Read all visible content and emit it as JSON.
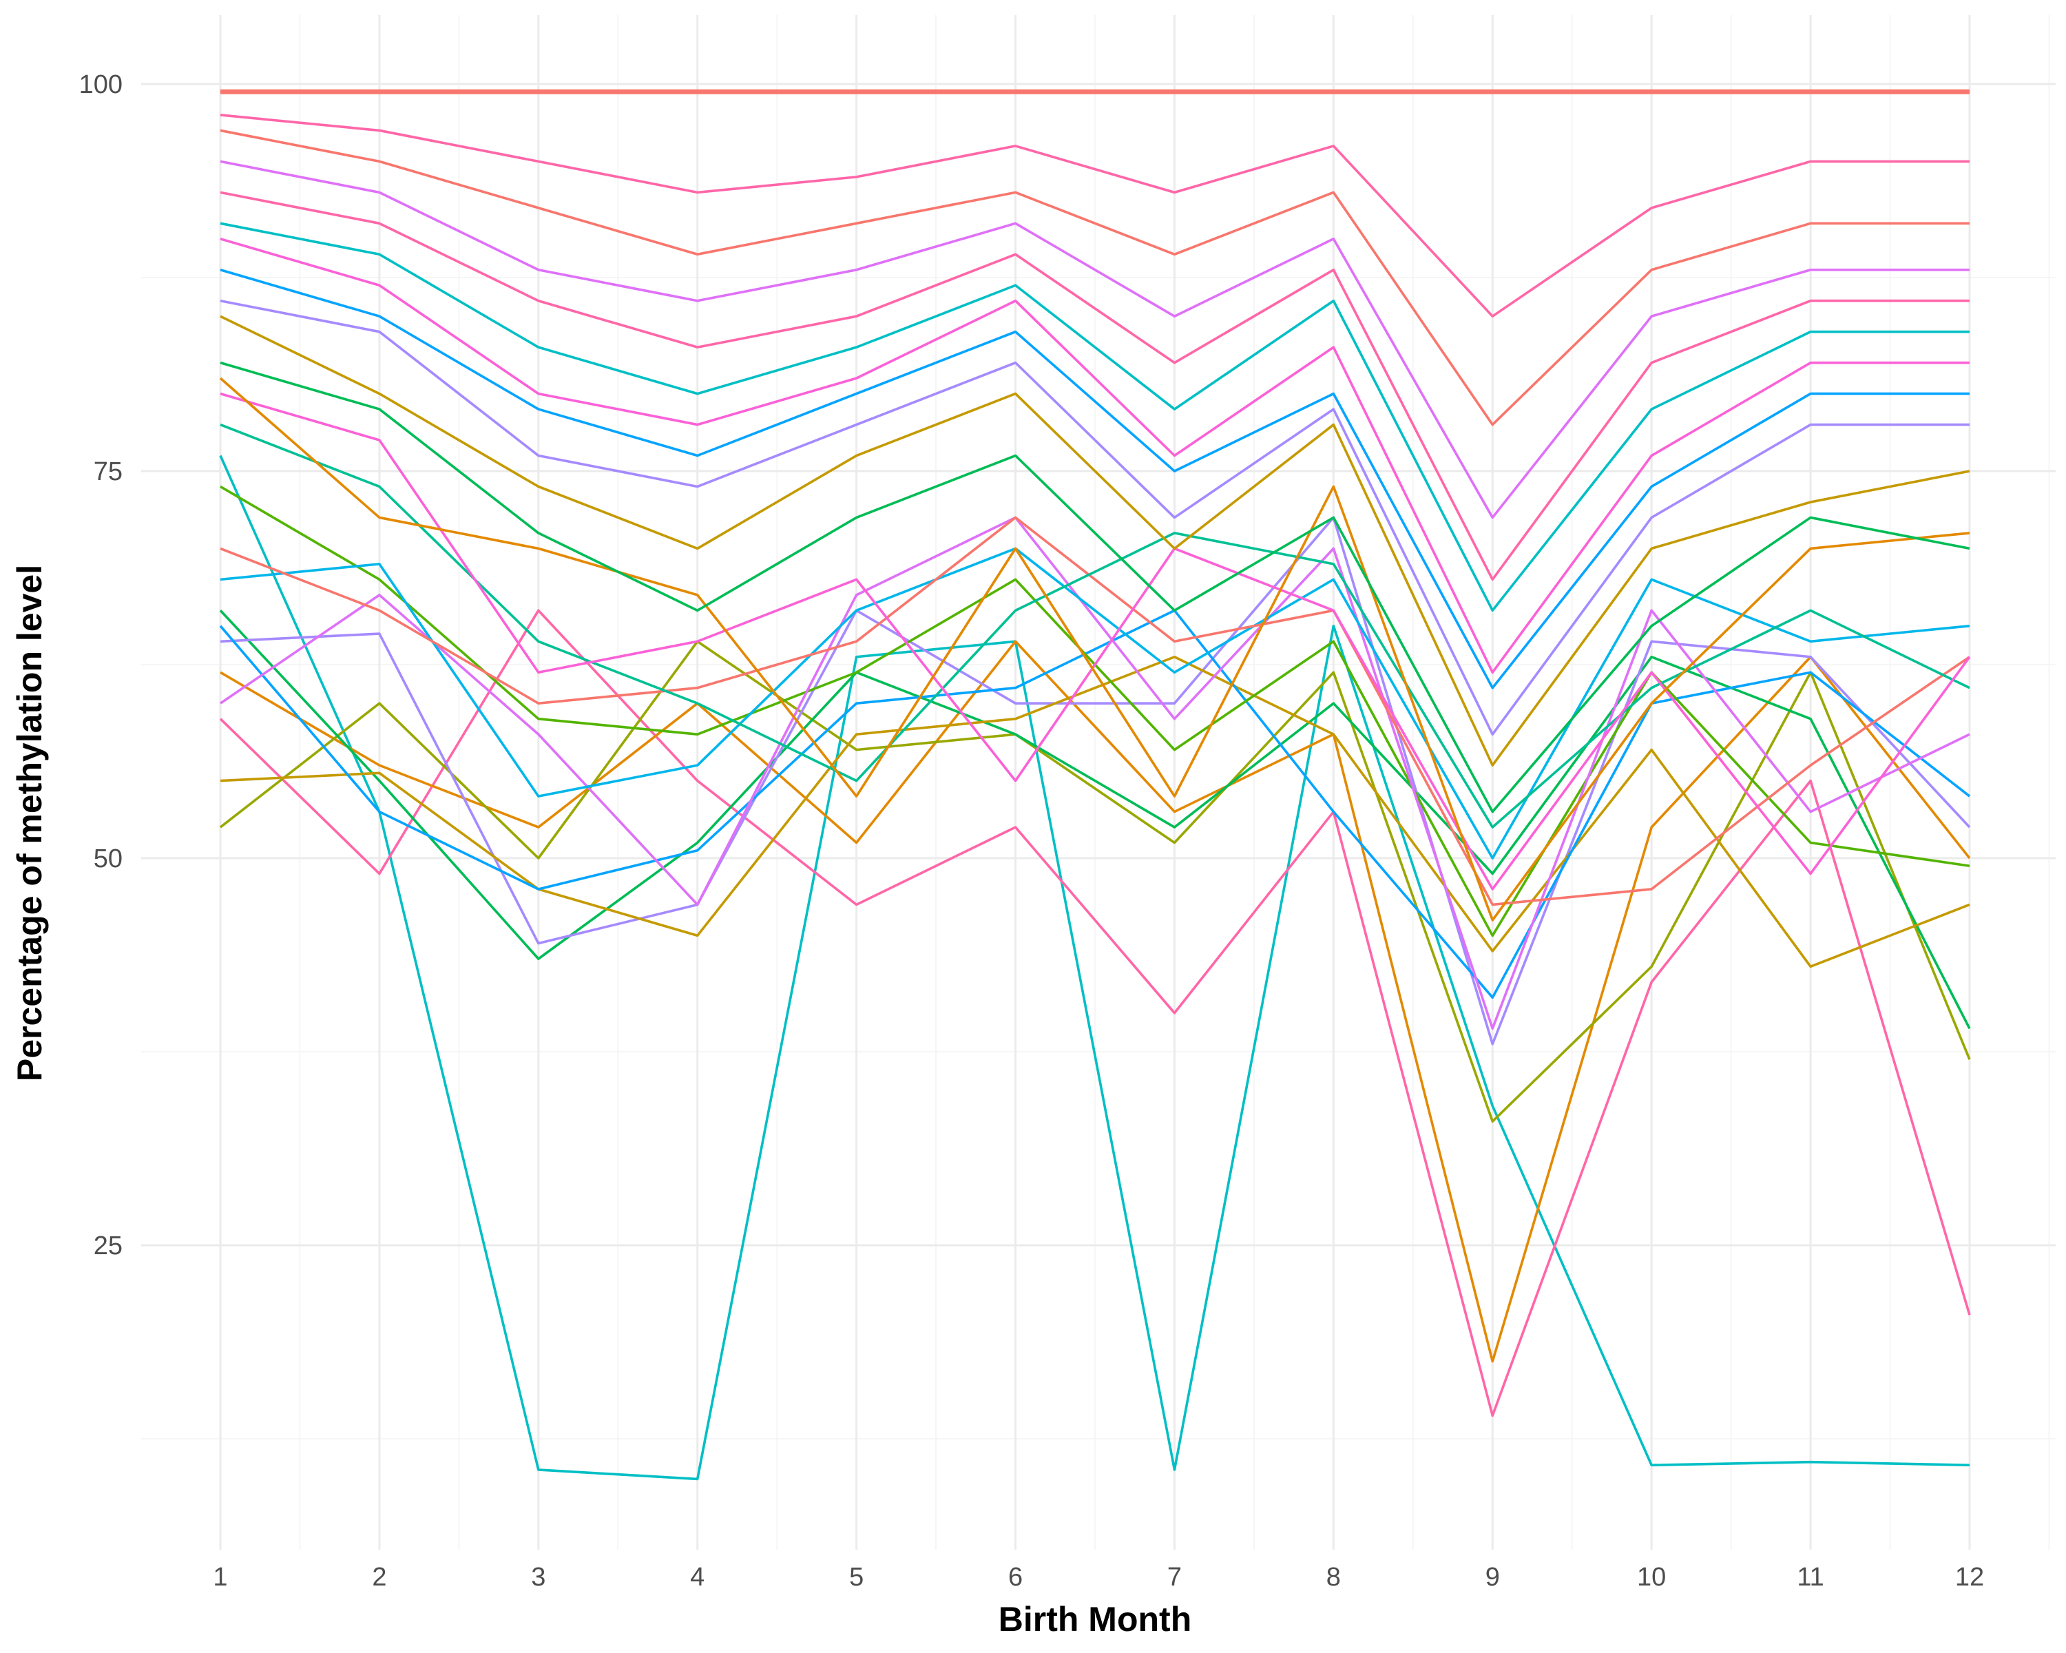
{
  "chart_data": {
    "type": "line",
    "title": "",
    "xlabel": "Birth Month",
    "ylabel": "Percentage of methylation level",
    "x": [
      1,
      2,
      3,
      4,
      5,
      6,
      7,
      8,
      9,
      10,
      11,
      12
    ],
    "x_tick_labels": [
      "1",
      "2",
      "3",
      "4",
      "5",
      "6",
      "7",
      "8",
      "9",
      "10",
      "11",
      "12"
    ],
    "y_ticks": [
      25,
      50,
      75,
      100
    ],
    "y_tick_labels": [
      "25",
      "50",
      "75",
      "100"
    ],
    "xlim": [
      0.5,
      12.5
    ],
    "ylim": [
      6,
      104.5
    ],
    "grid": true,
    "legend": "none",
    "series_colors": [
      "#F8766D",
      "#E38900",
      "#C49A00",
      "#99A800",
      "#53B400",
      "#00BC56",
      "#00C094",
      "#00BFC4",
      "#00B6EB",
      "#06A4FF",
      "#A58AFF",
      "#DF70F8",
      "#FB61D7",
      "#FF66A8"
    ],
    "series": [
      {
        "color": "#00BFC4",
        "values": [
          76,
          53,
          10.5,
          9.9,
          63,
          64,
          10.5,
          65,
          34,
          10.8,
          11,
          10.8
        ]
      },
      {
        "color": "#FF66A8",
        "values": [
          59,
          49,
          66,
          55,
          47,
          52,
          40,
          53,
          14,
          42,
          55,
          20.5
        ]
      },
      {
        "color": "#E38900",
        "values": [
          62,
          56,
          52,
          60,
          51,
          64,
          53,
          58,
          17.5,
          52,
          63,
          50
        ]
      },
      {
        "color": "#99A800",
        "values": [
          52,
          60,
          50,
          64,
          57,
          58,
          51,
          62,
          33,
          43,
          62,
          37
        ]
      },
      {
        "color": "#00BC56",
        "values": [
          66,
          55,
          43.5,
          51,
          62,
          58,
          52,
          60,
          49,
          63,
          59,
          39
        ]
      },
      {
        "color": "#A58AFF",
        "values": [
          64,
          64.5,
          44.5,
          47,
          66,
          60,
          60,
          72,
          38,
          64,
          63,
          52
        ]
      },
      {
        "color": "#C49A00",
        "values": [
          55,
          55.5,
          48,
          45,
          58,
          59,
          63,
          58,
          44,
          57,
          43,
          47
        ]
      },
      {
        "color": "#06A4FF",
        "values": [
          65,
          53,
          48,
          50.5,
          60,
          61,
          66,
          53,
          41,
          60,
          62,
          54
        ]
      },
      {
        "color": "#53B400",
        "values": [
          74,
          68,
          59,
          58,
          62,
          68,
          57,
          64,
          45,
          62,
          51,
          49.5
        ]
      },
      {
        "color": "#DF70F8",
        "values": [
          60,
          67,
          58,
          47,
          67,
          72,
          59,
          70,
          39,
          66,
          53,
          58
        ]
      },
      {
        "color": "#00B6EB",
        "values": [
          68,
          69,
          54,
          56,
          66,
          70,
          62,
          68,
          50,
          68,
          64,
          65
        ]
      },
      {
        "color": "#F8766D",
        "values": [
          70,
          66,
          60,
          61,
          64,
          72,
          64,
          66,
          47,
          48,
          56,
          63
        ]
      },
      {
        "color": "#00C094",
        "values": [
          78,
          74,
          64,
          60,
          55,
          66,
          71,
          69,
          52,
          61,
          66,
          61
        ]
      },
      {
        "color": "#FB61D7",
        "values": [
          80,
          77,
          62,
          64,
          68,
          55,
          70,
          66,
          48,
          62,
          49,
          63
        ]
      },
      {
        "color": "#E38900",
        "values": [
          81,
          72,
          70,
          67,
          54,
          70,
          54,
          74,
          46,
          60,
          70,
          71
        ]
      },
      {
        "color": "#00BC56",
        "values": [
          82,
          79,
          71,
          66,
          72,
          76,
          66,
          72,
          53,
          65,
          72,
          70
        ]
      },
      {
        "color": "#C49A00",
        "values": [
          85,
          80,
          74,
          70,
          76,
          80,
          70,
          78,
          56,
          70,
          73,
          75
        ]
      },
      {
        "color": "#A58AFF",
        "values": [
          86,
          84,
          76,
          74,
          78,
          82,
          72,
          79,
          58,
          72,
          78,
          78
        ]
      },
      {
        "color": "#06A4FF",
        "values": [
          88,
          85,
          79,
          76,
          80,
          84,
          75,
          80,
          61,
          74,
          80,
          80
        ]
      },
      {
        "color": "#FB61D7",
        "values": [
          90,
          87,
          80,
          78,
          81,
          86,
          76,
          83,
          62,
          76,
          82,
          82
        ]
      },
      {
        "color": "#00BFC4",
        "values": [
          91,
          89,
          83,
          80,
          83,
          87,
          79,
          86,
          66,
          79,
          84,
          84
        ]
      },
      {
        "color": "#FF66A8",
        "values": [
          93,
          91,
          86,
          83,
          85,
          89,
          82,
          88,
          68,
          82,
          86,
          86
        ]
      },
      {
        "color": "#DF70F8",
        "values": [
          95,
          93,
          88,
          86,
          88,
          91,
          85,
          90,
          72,
          85,
          88,
          88
        ]
      },
      {
        "color": "#F8766D",
        "values": [
          97,
          95,
          92,
          89,
          91,
          93,
          89,
          93,
          78,
          88,
          91,
          91
        ]
      },
      {
        "color": "#FF66A8",
        "values": [
          98,
          97,
          95,
          93,
          94,
          96,
          93,
          96,
          85,
          92,
          95,
          95
        ]
      },
      {
        "color": "#F8766D",
        "values": [
          99.5,
          99.5,
          99.5,
          99.5,
          99.5,
          99.5,
          99.5,
          99.5,
          99.5,
          99.5,
          99.5,
          99.5
        ]
      }
    ]
  }
}
